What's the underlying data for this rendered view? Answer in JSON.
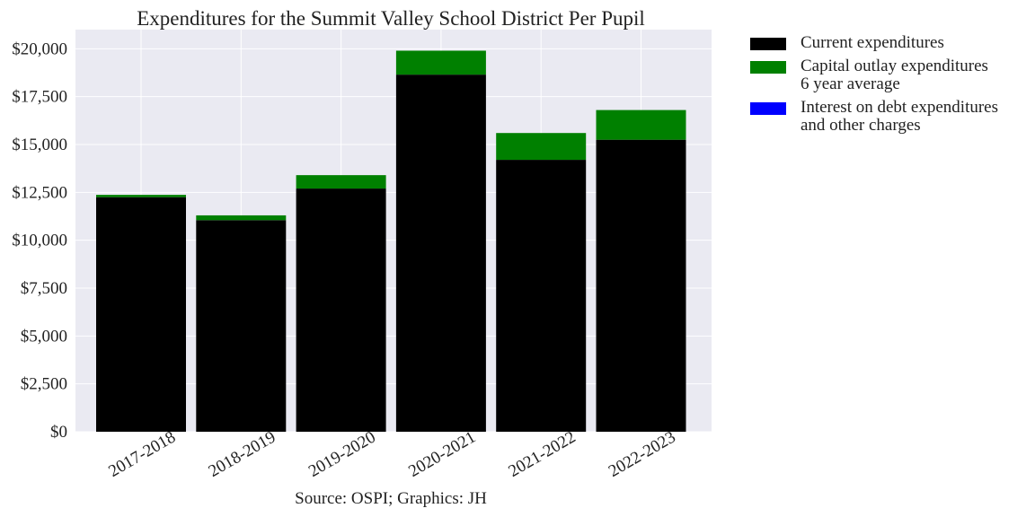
{
  "chart_data": {
    "type": "bar",
    "stacked": true,
    "title": "Expenditures for the Summit Valley School District Per Pupil",
    "source": "Source: OSPI; Graphics: JH",
    "categories": [
      "2017-2018",
      "2018-2019",
      "2019-2020",
      "2020-2021",
      "2021-2022",
      "2022-2023"
    ],
    "series": [
      {
        "name": "Current expenditures",
        "color": "#000000",
        "values": [
          12250,
          11050,
          12700,
          18650,
          14200,
          15250
        ]
      },
      {
        "name": "Capital outlay expenditures\n6 year average",
        "color": "#008000",
        "values": [
          120,
          250,
          700,
          1250,
          1400,
          1550
        ]
      },
      {
        "name": "Interest on debt expenditures\nand other charges",
        "color": "#0000ff",
        "values": [
          0,
          0,
          0,
          0,
          0,
          0
        ]
      }
    ],
    "ylim": [
      0,
      21000
    ],
    "yticks": [
      0,
      2500,
      5000,
      7500,
      10000,
      12500,
      15000,
      17500,
      20000
    ],
    "ytick_labels": [
      "$0",
      "$2,500",
      "$5,000",
      "$7,500",
      "$10,000",
      "$12,500",
      "$15,000",
      "$17,500",
      "$20,000"
    ],
    "grid": true,
    "legend_position": "outside-right-top"
  }
}
